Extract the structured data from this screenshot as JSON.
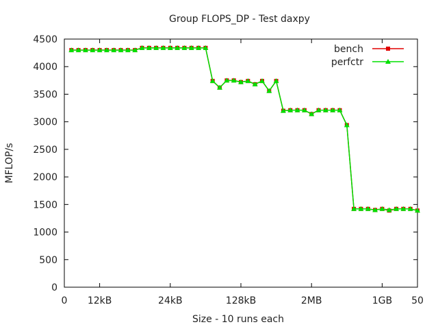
{
  "chart_data": {
    "type": "line",
    "title": "Group FLOPS_DP - Test daxpy",
    "xlabel": "Size - 10 runs each",
    "ylabel": "MFLOP/s",
    "xlim": [
      0,
      50
    ],
    "ylim": [
      0,
      4500
    ],
    "x_ticks": [
      {
        "value": 0,
        "label": "0"
      },
      {
        "value": 5,
        "label": "12kB"
      },
      {
        "value": 15,
        "label": "24kB"
      },
      {
        "value": 25,
        "label": "128kB"
      },
      {
        "value": 35,
        "label": "2MB"
      },
      {
        "value": 45,
        "label": "1GB"
      },
      {
        "value": 50,
        "label": "50"
      }
    ],
    "y_ticks": [
      0,
      500,
      1000,
      1500,
      2000,
      2500,
      3000,
      3500,
      4000,
      4500
    ],
    "legend_position": "top-right",
    "x": [
      1,
      2,
      3,
      4,
      5,
      6,
      7,
      8,
      9,
      10,
      11,
      12,
      13,
      14,
      15,
      16,
      17,
      18,
      19,
      20,
      21,
      22,
      23,
      24,
      25,
      26,
      27,
      28,
      29,
      30,
      31,
      32,
      33,
      34,
      35,
      36,
      37,
      38,
      39,
      40,
      41,
      42,
      43,
      44,
      45,
      46,
      47,
      48,
      49,
      50
    ],
    "series": [
      {
        "name": "bench",
        "color": "#e00000",
        "marker": "square",
        "values": [
          4300,
          4300,
          4300,
          4300,
          4300,
          4300,
          4300,
          4300,
          4300,
          4300,
          4340,
          4340,
          4340,
          4340,
          4340,
          4340,
          4340,
          4340,
          4340,
          4340,
          3740,
          3620,
          3750,
          3750,
          3720,
          3740,
          3680,
          3740,
          3560,
          3740,
          3200,
          3210,
          3210,
          3210,
          3140,
          3210,
          3210,
          3210,
          3210,
          2940,
          1420,
          1420,
          1420,
          1400,
          1420,
          1390,
          1420,
          1420,
          1420,
          1390
        ]
      },
      {
        "name": "perfctr",
        "color": "#00e000",
        "marker": "triangle",
        "values": [
          4300,
          4300,
          4300,
          4300,
          4300,
          4300,
          4300,
          4300,
          4300,
          4300,
          4340,
          4340,
          4340,
          4340,
          4340,
          4340,
          4340,
          4340,
          4340,
          4340,
          3740,
          3620,
          3750,
          3750,
          3720,
          3740,
          3680,
          3740,
          3560,
          3740,
          3200,
          3210,
          3210,
          3210,
          3140,
          3210,
          3210,
          3210,
          3210,
          2940,
          1420,
          1420,
          1420,
          1400,
          1420,
          1400,
          1420,
          1420,
          1420,
          1390
        ]
      }
    ]
  }
}
